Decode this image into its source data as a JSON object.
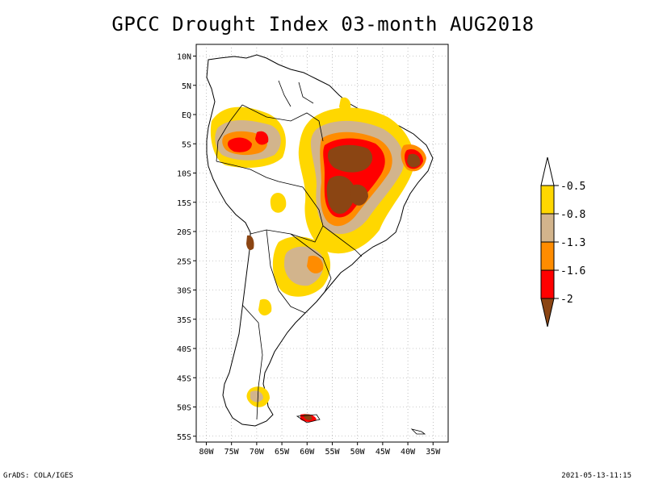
{
  "title": "GPCC Drought Index 03-month AUG2018",
  "footer": {
    "left": "GrADS: COLA/IGES",
    "right": "2021-05-13-11:15"
  },
  "map": {
    "lat_labels": [
      "10N",
      "5N",
      "EQ",
      "5S",
      "10S",
      "15S",
      "20S",
      "25S",
      "30S",
      "35S",
      "40S",
      "45S",
      "50S",
      "55S"
    ],
    "lon_labels": [
      "80W",
      "75W",
      "70W",
      "65W",
      "60W",
      "55W",
      "50W",
      "45W",
      "40W",
      "35W"
    ],
    "grid": true
  },
  "colorbar": {
    "labels": [
      "-0.5",
      "-0.8",
      "-1.3",
      "-1.6",
      "-2"
    ],
    "colors": [
      "#ffffff",
      "#ffd700",
      "#d2b48c",
      "#ff8c00",
      "#ff0000",
      "#8b4513"
    ]
  }
}
